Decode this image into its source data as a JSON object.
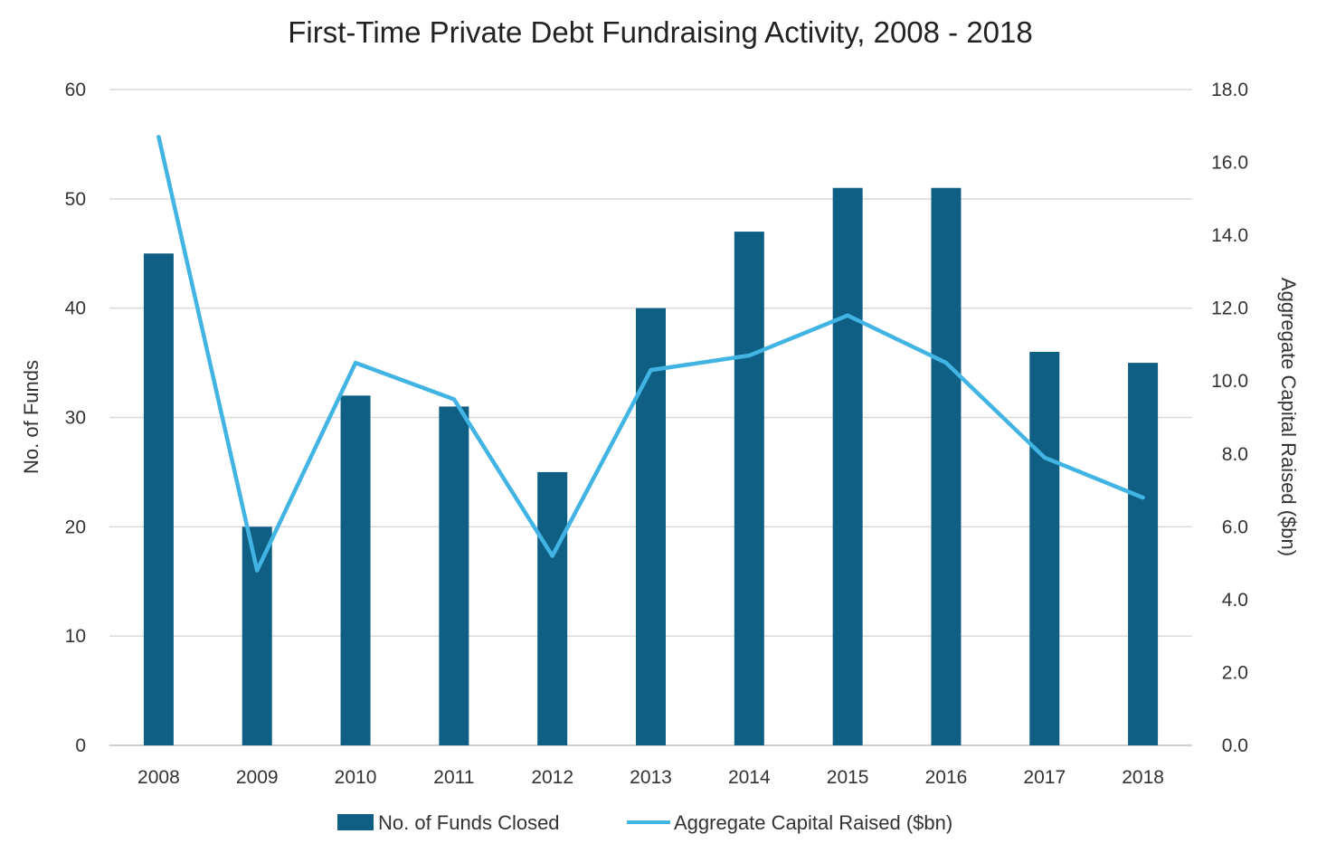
{
  "chart_data": {
    "type": "bar",
    "title": "First-Time Private Debt Fundraising Activity, 2008 - 2018",
    "categories": [
      "2008",
      "2009",
      "2010",
      "2011",
      "2012",
      "2013",
      "2014",
      "2015",
      "2016",
      "2017",
      "2018"
    ],
    "series": [
      {
        "name": "No. of Funds Closed",
        "type": "bar",
        "axis": "left",
        "color": "#0f5e84",
        "values": [
          45,
          20,
          32,
          31,
          25,
          40,
          47,
          51,
          51,
          36,
          35
        ]
      },
      {
        "name": "Aggregate Capital Raised ($bn)",
        "type": "line",
        "axis": "right",
        "color": "#42b4e3",
        "values": [
          16.7,
          4.8,
          10.5,
          9.5,
          5.2,
          10.3,
          10.7,
          11.8,
          10.5,
          7.9,
          6.8
        ]
      }
    ],
    "ylabel": "No. of Funds",
    "ylim": [
      0,
      60
    ],
    "yticks": [
      "0",
      "10",
      "20",
      "30",
      "40",
      "50",
      "60"
    ],
    "y2label": "Aggregate Capital Raised ($bn)",
    "y2lim": [
      0,
      18
    ],
    "y2ticks": [
      "0.0",
      "2.0",
      "4.0",
      "6.0",
      "8.0",
      "10.0",
      "12.0",
      "14.0",
      "16.0",
      "18.0"
    ],
    "grid": true,
    "legend_position": "bottom-center",
    "gridline_color": "#d9d9d9"
  }
}
